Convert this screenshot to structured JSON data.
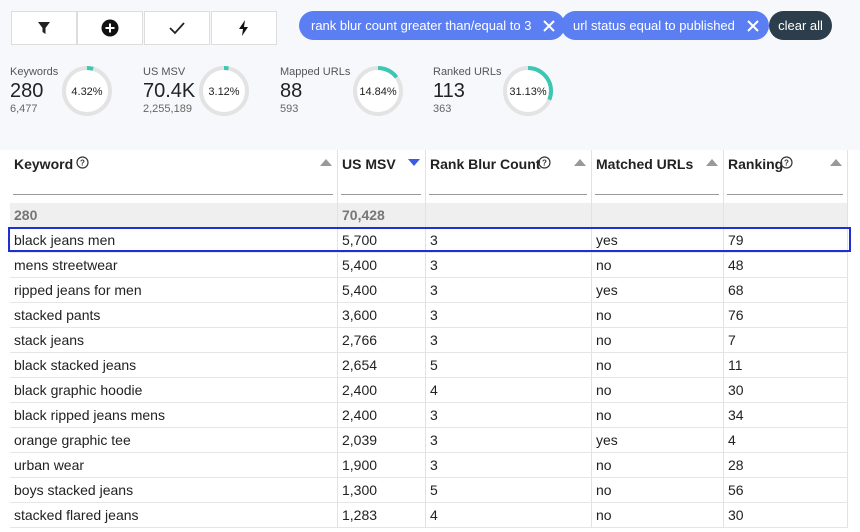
{
  "filters": [
    "rank blur count greater than/equal to 3",
    "url status equal to published"
  ],
  "clear_all": "clear all",
  "stats": [
    {
      "label": "Keywords",
      "value": "280",
      "sub": "6,477",
      "percent": {
        "value": 4.32,
        "label": "4.32%"
      }
    },
    {
      "label": "US MSV",
      "value": "70.4K",
      "sub": "2,255,189",
      "percent": {
        "value": 3.12,
        "label": "3.12%"
      }
    },
    {
      "label": "Mapped URLs",
      "value": "88",
      "sub": "593",
      "percent": {
        "value": 14.84,
        "label": "14.84%"
      }
    },
    {
      "label": "Ranked URLs",
      "value": "113",
      "sub": "363",
      "percent": {
        "value": 31.13,
        "label": "31.13%"
      }
    }
  ],
  "table": {
    "columns": [
      "Keyword",
      "US MSV",
      "Rank Blur Count",
      "Matched URLs",
      "Ranking"
    ],
    "totals": [
      "280",
      "70,428"
    ],
    "rows": [
      [
        "black jeans men",
        "5,700",
        "3",
        "yes",
        "79"
      ],
      [
        "mens streetwear",
        "5,400",
        "3",
        "no",
        "48"
      ],
      [
        "ripped jeans for men",
        "5,400",
        "3",
        "yes",
        "68"
      ],
      [
        "stacked pants",
        "3,600",
        "3",
        "no",
        "76"
      ],
      [
        "stack jeans",
        "2,766",
        "3",
        "no",
        "7"
      ],
      [
        "black stacked jeans",
        "2,654",
        "5",
        "no",
        "11"
      ],
      [
        "black graphic hoodie",
        "2,400",
        "4",
        "no",
        "30"
      ],
      [
        "black ripped jeans mens",
        "2,400",
        "3",
        "no",
        "34"
      ],
      [
        "orange graphic tee",
        "2,039",
        "3",
        "yes",
        "4"
      ],
      [
        "urban wear",
        "1,900",
        "3",
        "no",
        "28"
      ],
      [
        "boys stacked jeans",
        "1,300",
        "5",
        "no",
        "56"
      ],
      [
        "stacked flared jeans",
        "1,283",
        "4",
        "no",
        "30"
      ]
    ]
  }
}
